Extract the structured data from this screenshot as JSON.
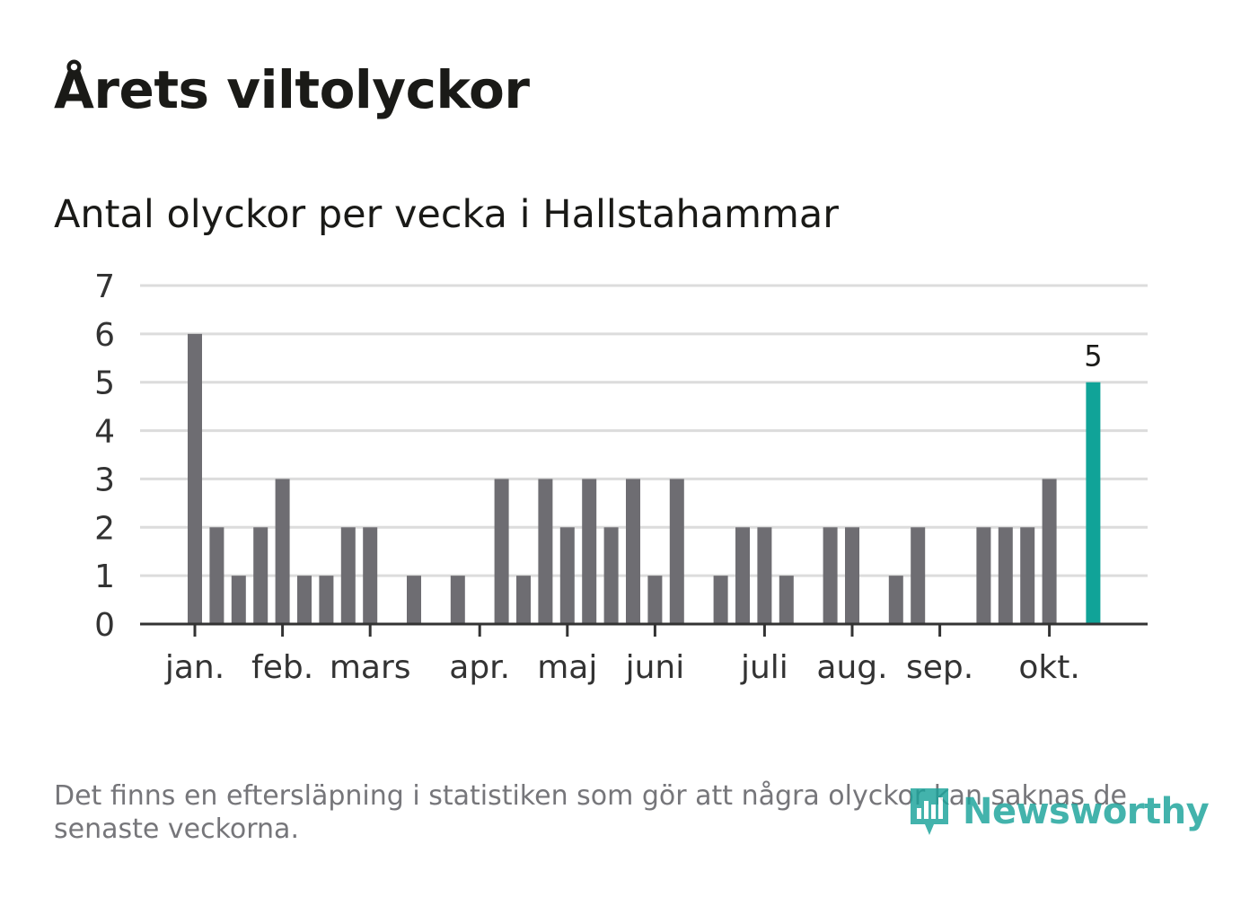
{
  "title": "Årets viltolyckor",
  "subtitle": "Antal olyckor per vecka i Hallstahammar",
  "footnote": "Det finns en eftersläpning i statistiken som gör att några olyckor kan saknas de senaste veckorna.",
  "brand": {
    "name": "Newsworthy",
    "logo_icon": "newsworthy-logo-icon",
    "color": "#1ba39a"
  },
  "colors": {
    "bar": "#6e6d72",
    "highlight": "#10a398",
    "grid": "#dcdcdc",
    "axis": "#333333",
    "tick_label": "#333333"
  },
  "chart_data": {
    "type": "bar",
    "title": "Antal olyckor per vecka i Hallstahammar",
    "xlabel": "",
    "ylabel": "",
    "ylim": [
      0,
      7
    ],
    "yticks": [
      0,
      1,
      2,
      3,
      4,
      5,
      6,
      7
    ],
    "grid": true,
    "weeks": [
      1,
      2,
      3,
      4,
      5,
      6,
      7,
      8,
      9,
      10,
      11,
      12,
      13,
      14,
      15,
      16,
      17,
      18,
      19,
      20,
      21,
      22,
      23,
      24,
      25,
      26,
      27,
      28,
      29,
      30,
      31,
      32,
      33,
      34,
      35,
      36,
      37,
      38,
      39,
      40,
      41,
      42
    ],
    "values": [
      6,
      2,
      1,
      2,
      3,
      1,
      1,
      2,
      2,
      0,
      1,
      0,
      1,
      0,
      3,
      1,
      3,
      2,
      3,
      2,
      3,
      1,
      3,
      0,
      1,
      2,
      2,
      1,
      0,
      2,
      2,
      0,
      1,
      2,
      0,
      0,
      2,
      2,
      2,
      3,
      0,
      5
    ],
    "highlight_index": 41,
    "highlight_label": "5",
    "month_ticks": [
      {
        "label": "jan.",
        "week": 1
      },
      {
        "label": "feb.",
        "week": 5
      },
      {
        "label": "mars",
        "week": 9
      },
      {
        "label": "apr.",
        "week": 14
      },
      {
        "label": "maj",
        "week": 18
      },
      {
        "label": "juni",
        "week": 22
      },
      {
        "label": "juli",
        "week": 27
      },
      {
        "label": "aug.",
        "week": 31
      },
      {
        "label": "sep.",
        "week": 35
      },
      {
        "label": "okt.",
        "week": 40
      }
    ]
  }
}
